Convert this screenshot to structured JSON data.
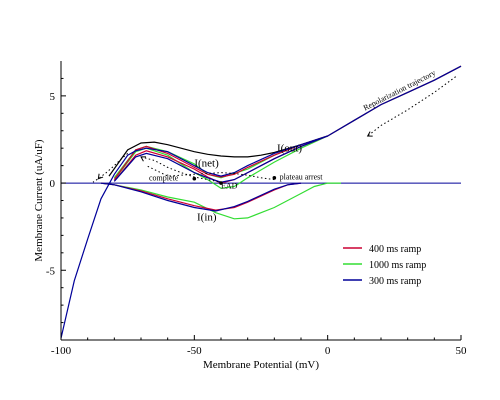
{
  "chart_data": {
    "type": "line",
    "xlabel": "Membrane Potential (mV)",
    "ylabel": "Membrane Current (uA/uF)",
    "xlim": [
      -100,
      50
    ],
    "ylim": [
      -9,
      7
    ],
    "x_ticks": [
      "-100",
      "-50",
      "0",
      "50"
    ],
    "y_ticks": [
      "5",
      "0",
      "-5"
    ],
    "x_tick_values": [
      -100,
      -50,
      0,
      50
    ],
    "y_tick_values": [
      5,
      0,
      -5
    ],
    "legend_position": "bottom-right",
    "legend": [
      "400 ms ramp",
      "1000 ms ramp",
      "300 ms ramp"
    ],
    "colors": {
      "400 ms ramp": "#cc0033",
      "1000 ms ramp": "#33dd33",
      "300 ms ramp": "#000099",
      "I(out) baseline": "#000000",
      "zero line": "#000099"
    },
    "curve_labels": {
      "iout": "I(out)",
      "inet": "I(net)",
      "iin": "I(in)"
    },
    "annotations": {
      "complete": "complete",
      "ead": "EAD",
      "plateau": "plateau arrest",
      "repol": "Repolarization trajectory"
    },
    "series": [
      {
        "name": "400 ms ramp",
        "curves": {
          "I(out)": [
            [
              -80,
              0.2
            ],
            [
              -72,
              1.9
            ],
            [
              -68,
              2.1
            ],
            [
              -60,
              1.7
            ],
            [
              -50,
              0.9
            ],
            [
              -45,
              0.5
            ],
            [
              -40,
              0.35
            ],
            [
              -35,
              0.5
            ],
            [
              -30,
              0.9
            ],
            [
              -20,
              1.6
            ],
            [
              -10,
              2.2
            ],
            [
              0,
              2.7
            ],
            [
              10,
              3.6
            ],
            [
              20,
              4.5
            ],
            [
              30,
              5.2
            ],
            [
              40,
              5.9
            ],
            [
              50,
              6.7
            ]
          ],
          "I(net)": [
            [
              -80,
              0.1
            ],
            [
              -72,
              1.6
            ],
            [
              -68,
              1.85
            ],
            [
              -60,
              1.5
            ],
            [
              -50,
              0.8
            ],
            [
              -45,
              0.35
            ],
            [
              -40,
              0.0
            ],
            [
              -35,
              0.2
            ],
            [
              -30,
              0.6
            ],
            [
              -20,
              1.4
            ],
            [
              -10,
              2.1
            ],
            [
              0,
              2.7
            ]
          ],
          "I(in)": [
            [
              -85,
              0.0
            ],
            [
              -80,
              -0.1
            ],
            [
              -70,
              -0.45
            ],
            [
              -60,
              -0.9
            ],
            [
              -50,
              -1.3
            ],
            [
              -42,
              -1.55
            ],
            [
              -35,
              -1.4
            ],
            [
              -30,
              -1.1
            ],
            [
              -20,
              -0.4
            ],
            [
              -15,
              -0.1
            ],
            [
              -10,
              0.0
            ]
          ]
        }
      },
      {
        "name": "1000 ms ramp",
        "curves": {
          "I(out)": [
            [
              -80,
              0.3
            ],
            [
              -72,
              1.9
            ],
            [
              -68,
              2.1
            ],
            [
              -60,
              1.8
            ],
            [
              -50,
              1.1
            ],
            [
              -45,
              0.5
            ],
            [
              -40,
              0.3
            ],
            [
              -30,
              0.8
            ],
            [
              -20,
              1.6
            ],
            [
              -10,
              2.2
            ],
            [
              0,
              2.7
            ],
            [
              10,
              3.6
            ],
            [
              20,
              4.5
            ],
            [
              30,
              5.2
            ],
            [
              40,
              5.9
            ],
            [
              50,
              6.7
            ]
          ],
          "I(net)": [
            [
              -80,
              0.2
            ],
            [
              -72,
              1.8
            ],
            [
              -68,
              2.0
            ],
            [
              -60,
              1.6
            ],
            [
              -50,
              0.6
            ],
            [
              -45,
              0.2
            ],
            [
              -40,
              -0.3
            ],
            [
              -35,
              -0.2
            ],
            [
              -30,
              0.3
            ],
            [
              -20,
              1.2
            ],
            [
              -10,
              2.0
            ],
            [
              0,
              2.7
            ]
          ],
          "I(in)": [
            [
              -85,
              0.0
            ],
            [
              -80,
              -0.1
            ],
            [
              -70,
              -0.4
            ],
            [
              -60,
              -0.8
            ],
            [
              -50,
              -1.1
            ],
            [
              -42,
              -1.7
            ],
            [
              -35,
              -2.05
            ],
            [
              -30,
              -2.0
            ],
            [
              -20,
              -1.4
            ],
            [
              -10,
              -0.6
            ],
            [
              -5,
              -0.2
            ],
            [
              0,
              0.0
            ],
            [
              5,
              0.0
            ]
          ]
        }
      },
      {
        "name": "300 ms ramp",
        "curves": {
          "I(out)": [
            [
              -100,
              -8.9
            ],
            [
              -95,
              -5.6
            ],
            [
              -90,
              -3.2
            ],
            [
              -85,
              -0.9
            ],
            [
              -80,
              0.5
            ],
            [
              -75,
              1.6
            ],
            [
              -72,
              1.85
            ],
            [
              -68,
              2.0
            ],
            [
              -60,
              1.8
            ],
            [
              -50,
              1.0
            ],
            [
              -45,
              0.6
            ],
            [
              -40,
              0.4
            ],
            [
              -35,
              0.6
            ],
            [
              -30,
              1.0
            ],
            [
              -20,
              1.7
            ],
            [
              -10,
              2.2
            ],
            [
              0,
              2.7
            ],
            [
              10,
              3.6
            ],
            [
              20,
              4.5
            ],
            [
              30,
              5.2
            ],
            [
              40,
              5.9
            ],
            [
              50,
              6.7
            ]
          ],
          "I(net)": [
            [
              -80,
              0.1
            ],
            [
              -72,
              1.5
            ],
            [
              -68,
              1.7
            ],
            [
              -60,
              1.4
            ],
            [
              -50,
              0.6
            ],
            [
              -45,
              0.3
            ],
            [
              -40,
              0.05
            ],
            [
              -35,
              0.2
            ],
            [
              -30,
              0.6
            ],
            [
              -20,
              1.4
            ],
            [
              -10,
              2.1
            ],
            [
              0,
              2.7
            ]
          ],
          "I(in)": [
            [
              -85,
              0.0
            ],
            [
              -80,
              -0.1
            ],
            [
              -70,
              -0.5
            ],
            [
              -60,
              -1.0
            ],
            [
              -50,
              -1.4
            ],
            [
              -42,
              -1.6
            ],
            [
              -35,
              -1.35
            ],
            [
              -30,
              -1.05
            ],
            [
              -20,
              -0.35
            ],
            [
              -15,
              -0.1
            ],
            [
              -10,
              0.0
            ]
          ]
        }
      },
      {
        "name": "I(out) baseline",
        "curves": {
          "I(out)": [
            [
              -82,
              0.4
            ],
            [
              -75,
              1.9
            ],
            [
              -70,
              2.3
            ],
            [
              -65,
              2.35
            ],
            [
              -60,
              2.2
            ],
            [
              -50,
              1.8
            ],
            [
              -45,
              1.65
            ],
            [
              -40,
              1.55
            ],
            [
              -35,
              1.5
            ],
            [
              -30,
              1.5
            ],
            [
              -25,
              1.6
            ],
            [
              -20,
              1.75
            ],
            [
              -10,
              2.2
            ],
            [
              0,
              2.7
            ]
          ]
        }
      }
    ],
    "zero_line": [
      [
        -100,
        0
      ],
      [
        50,
        0
      ]
    ],
    "repolarization_trajectory": [
      [
        48,
        6.1
      ],
      [
        40,
        5.2
      ],
      [
        30,
        4.2
      ],
      [
        20,
        3.3
      ],
      [
        15,
        2.7
      ]
    ],
    "complete_trajectory": [
      [
        -75,
        1.7
      ],
      [
        -78,
        1.3
      ],
      [
        -80,
        1.0
      ],
      [
        -83,
        0.6
      ],
      [
        -86,
        0.25
      ],
      [
        -88,
        0.05
      ]
    ],
    "ead_trajectory": [
      [
        -70,
        1.5
      ],
      [
        -65,
        1.3
      ],
      [
        -60,
        0.9
      ],
      [
        -55,
        0.6
      ],
      [
        -50,
        0.35
      ],
      [
        -45,
        0.2
      ],
      [
        -40,
        0.05
      ]
    ],
    "plateau_trajectory": [
      [
        -20,
        0.2
      ],
      [
        -25,
        0.3
      ],
      [
        -30,
        0.45
      ],
      [
        -35,
        0.55
      ],
      [
        -40,
        0.6
      ],
      [
        -50,
        0.5
      ],
      [
        -60,
        0.4
      ],
      [
        -68,
        1.0
      ]
    ],
    "markers": {
      "complete": [
        -50,
        0.25
      ],
      "ead": [
        -40,
        0.0
      ],
      "plateau": [
        -20,
        0.3
      ]
    }
  }
}
